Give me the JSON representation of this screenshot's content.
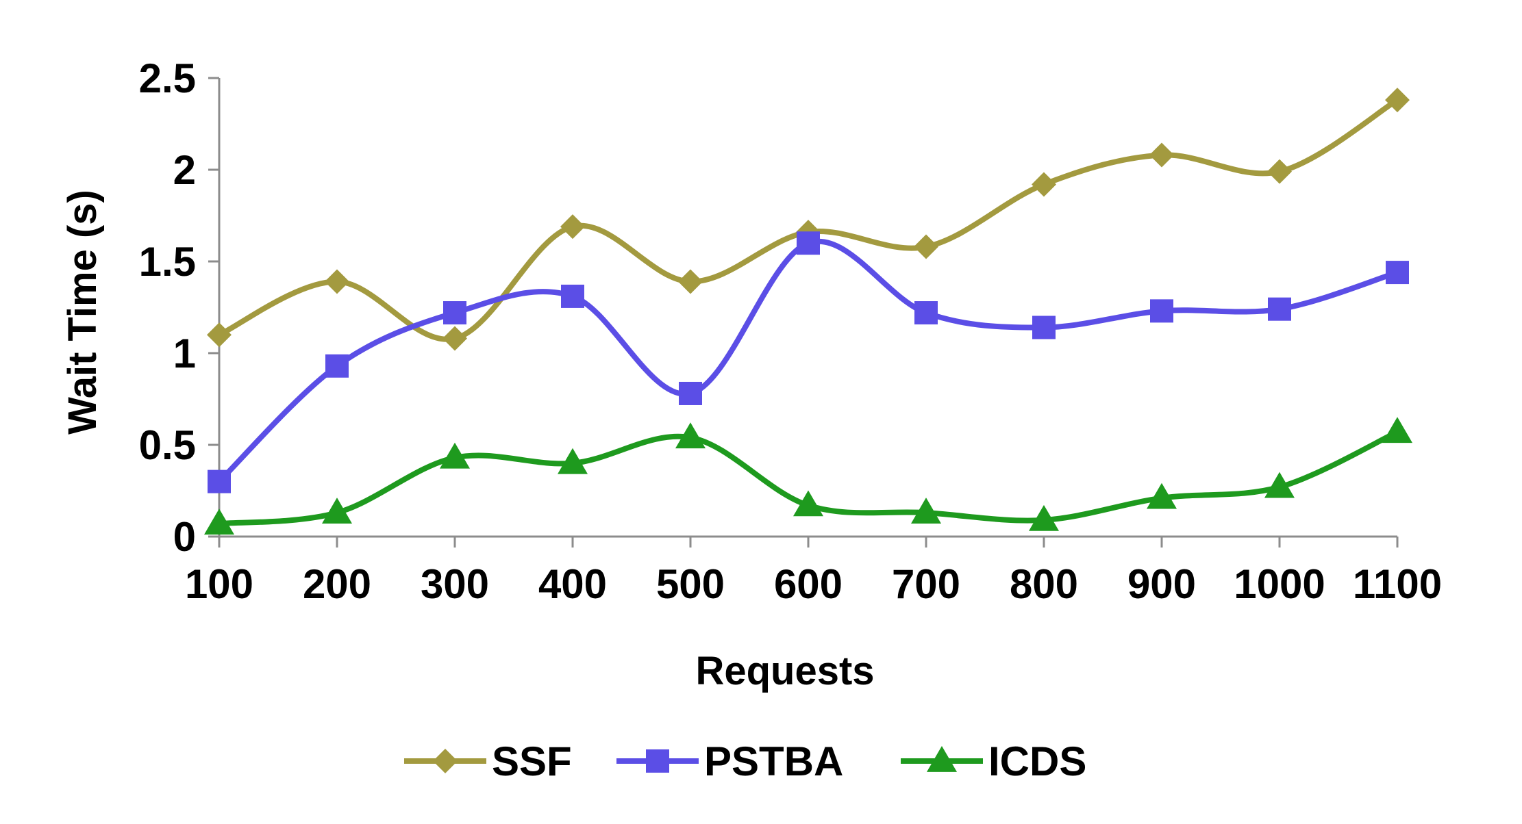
{
  "chart_data": {
    "type": "line",
    "title": "",
    "xlabel": "Requests",
    "ylabel": "Wait Time (s)",
    "x": [
      100,
      200,
      300,
      400,
      500,
      600,
      700,
      800,
      900,
      1000,
      1100
    ],
    "x_tick_labels": [
      "100",
      "200",
      "300",
      "400",
      "500",
      "600",
      "700",
      "800",
      "900",
      "1000",
      "1100"
    ],
    "y_tick_labels": [
      "0",
      "0.5",
      "1",
      "1.5",
      "2",
      "2.5"
    ],
    "y_ticks": [
      0,
      0.5,
      1,
      1.5,
      2,
      2.5
    ],
    "ylim": [
      0,
      2.5
    ],
    "smoothed": true,
    "grid": false,
    "legend_position": "bottom",
    "series": [
      {
        "name": "SSF",
        "color": "#A39A3F",
        "marker": "diamond",
        "values": [
          1.1,
          1.39,
          1.08,
          1.69,
          1.39,
          1.66,
          1.58,
          1.92,
          2.08,
          1.99,
          2.38
        ]
      },
      {
        "name": "PSTBA",
        "color": "#5B4EE6",
        "marker": "square",
        "values": [
          0.3,
          0.93,
          1.22,
          1.31,
          0.78,
          1.6,
          1.22,
          1.14,
          1.23,
          1.24,
          1.44
        ]
      },
      {
        "name": "ICDS",
        "color": "#1E9A1E",
        "marker": "triangle",
        "values": [
          0.07,
          0.13,
          0.43,
          0.4,
          0.54,
          0.17,
          0.13,
          0.09,
          0.21,
          0.27,
          0.57
        ]
      }
    ]
  }
}
